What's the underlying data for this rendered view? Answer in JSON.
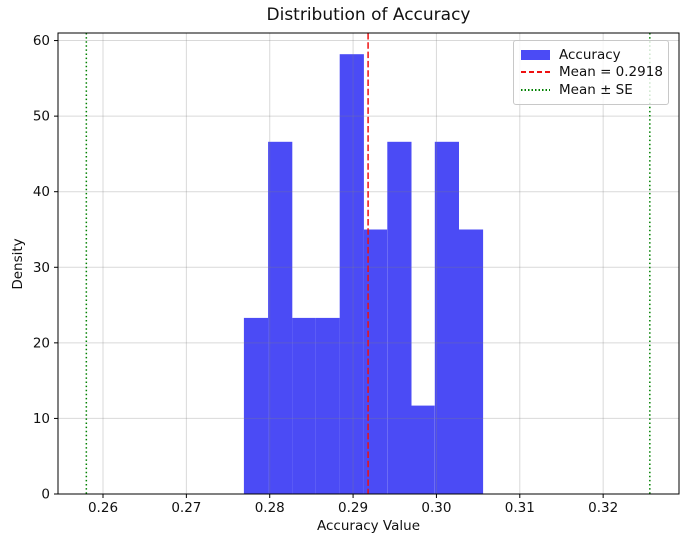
{
  "figure": {
    "kind": "matplotlib-histogram-figure"
  },
  "chart_data": {
    "type": "bar",
    "subtype": "histogram",
    "title": "Distribution of Accuracy",
    "xlabel": "Accuracy Value",
    "ylabel": "Density",
    "xlim": [
      0.2546,
      0.3291
    ],
    "ylim": [
      0,
      61
    ],
    "grid": true,
    "legend_position": "upper right",
    "xticks": {
      "values": [
        0.26,
        0.27,
        0.28,
        0.29,
        0.3,
        0.31,
        0.32
      ],
      "labels": [
        "0.26",
        "0.27",
        "0.28",
        "0.29",
        "0.30",
        "0.31",
        "0.32"
      ]
    },
    "yticks": {
      "values": [
        0,
        10,
        20,
        30,
        40,
        50,
        60
      ],
      "labels": [
        "0",
        "10",
        "20",
        "30",
        "40",
        "50",
        "60"
      ]
    },
    "histogram": {
      "bin_edges": [
        0.2769,
        0.2798,
        0.2827,
        0.2855,
        0.2884,
        0.2913,
        0.2941,
        0.297,
        0.2998,
        0.3027,
        0.3056
      ],
      "densities": [
        23.3,
        46.6,
        23.3,
        23.3,
        58.2,
        35.0,
        46.6,
        11.7,
        46.6,
        35.0
      ]
    },
    "mean": 0.2918,
    "se": 0.0338,
    "mean_minus_se": 0.258,
    "mean_plus_se": 0.3256,
    "legend": {
      "accuracy_label": "Accuracy",
      "mean_label": "Mean = 0.2918",
      "se_label": "Mean ± SE"
    },
    "colors": {
      "histogram_fill": "#4b4bf5",
      "mean_line": "#ee1111",
      "se_line": "#008000",
      "grid_rgba": "rgba(128,128,128,0.3)",
      "axis": "#000000",
      "text": "#111111"
    }
  }
}
